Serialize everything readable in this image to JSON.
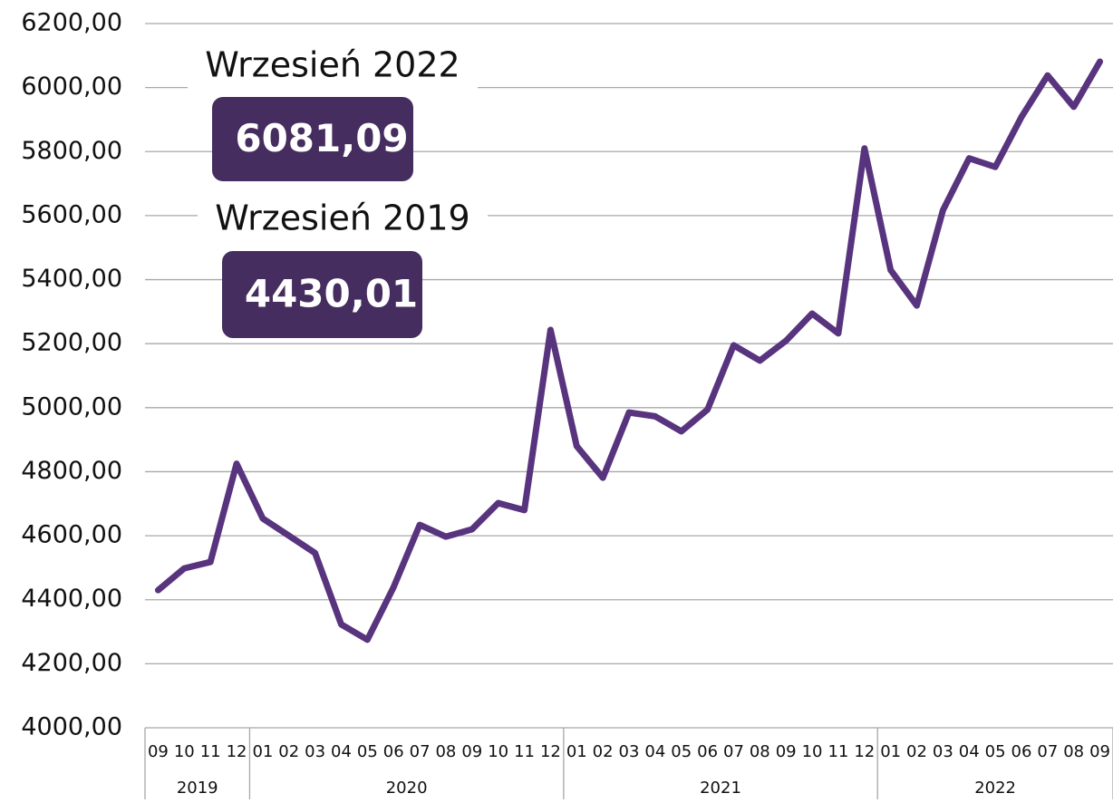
{
  "chart_data": {
    "type": "line",
    "categories": [
      "09",
      "10",
      "11",
      "12",
      "01",
      "02",
      "03",
      "04",
      "05",
      "06",
      "07",
      "08",
      "09",
      "10",
      "11",
      "12",
      "01",
      "02",
      "03",
      "04",
      "05",
      "06",
      "07",
      "08",
      "09",
      "10",
      "11",
      "12",
      "01",
      "02",
      "03",
      "04",
      "05",
      "06",
      "07",
      "08",
      "09"
    ],
    "year_groups": [
      {
        "label": "2019",
        "start": 0,
        "end": 3
      },
      {
        "label": "2020",
        "start": 4,
        "end": 15
      },
      {
        "label": "2021",
        "start": 16,
        "end": 27
      },
      {
        "label": "2022",
        "start": 28,
        "end": 36
      }
    ],
    "series": [
      {
        "color": "#58337e",
        "values": [
          4430.01,
          4498,
          4518,
          4825,
          4654,
          4600,
          4546,
          4323,
          4275,
          4439,
          4634,
          4597,
          4620,
          4702,
          4680,
          5243,
          4880,
          4781,
          4985,
          4973,
          4926,
          4994,
          5195,
          5147,
          5209,
          5294,
          5232,
          5810,
          5430,
          5319,
          5617,
          5779,
          5752,
          5908,
          6038,
          5940,
          6081.09
        ]
      }
    ],
    "ylim": [
      4000,
      6200
    ],
    "yticks": [
      {
        "value": 4000,
        "label": "4000,00"
      },
      {
        "value": 4200,
        "label": "4200,00"
      },
      {
        "value": 4400,
        "label": "4400,00"
      },
      {
        "value": 4600,
        "label": "4600,00"
      },
      {
        "value": 4800,
        "label": "4800,00"
      },
      {
        "value": 5000,
        "label": "5000,00"
      },
      {
        "value": 5200,
        "label": "5200,00"
      },
      {
        "value": 5400,
        "label": "5400,00"
      },
      {
        "value": 5600,
        "label": "5600,00"
      },
      {
        "value": 5800,
        "label": "5800,00"
      },
      {
        "value": 6000,
        "label": "6000,00"
      },
      {
        "value": 6200,
        "label": "6200,00"
      }
    ],
    "grid": true,
    "annotations": [
      {
        "title": "Wrzesień 2022",
        "label": "6081,09",
        "color": "#452d5f"
      },
      {
        "title": "Wrzesień 2019",
        "label": "4430,01",
        "color": "#452d5f"
      }
    ]
  }
}
